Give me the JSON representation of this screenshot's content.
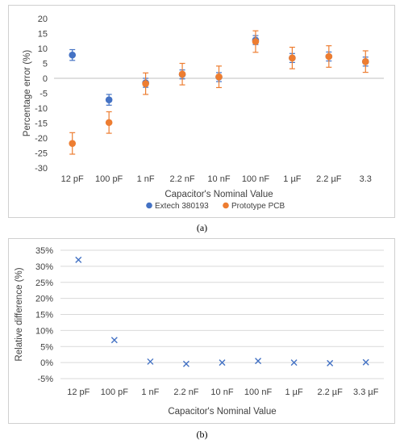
{
  "chart_data": [
    {
      "type": "scatter",
      "panel_label": "(a)",
      "xlabel": "Capacitor's Nominal Value",
      "ylabel": "Percentage error (%)",
      "categories": [
        "12 pF",
        "100 pF",
        "1 nF",
        "2.2 nF",
        "10 nF",
        "100 nF",
        "1 µF",
        "2.2 µF",
        "3.3"
      ],
      "ylim": [
        -30,
        20
      ],
      "yticks": [
        "20",
        "15",
        "10",
        "5",
        "0",
        "-5",
        "-10",
        "-15",
        "-20",
        "-25",
        "-30"
      ],
      "grid": false,
      "legend_position": "bottom",
      "series": [
        {
          "name": "Extech 380193",
          "color": "#4472c4",
          "values": [
            7.8,
            -7.2,
            -1.5,
            1.3,
            0.4,
            12.8,
            6.8,
            7.3,
            5.6
          ],
          "error": [
            1.8,
            1.8,
            1.5,
            1.5,
            1.5,
            1.5,
            1.5,
            1.5,
            1.5
          ]
        },
        {
          "name": "Prototype PCB",
          "color": "#ed7d31",
          "values": [
            -21.8,
            -14.8,
            -1.8,
            1.4,
            0.5,
            12.3,
            6.8,
            7.3,
            5.6
          ],
          "error": [
            3.6,
            3.6,
            3.6,
            3.6,
            3.6,
            3.6,
            3.6,
            3.6,
            3.6
          ]
        }
      ]
    },
    {
      "type": "scatter",
      "panel_label": "(b)",
      "xlabel": "Capacitor's Nominal Value",
      "ylabel": "Relative difference (%)",
      "categories": [
        "12 pF",
        "100 pF",
        "1 nF",
        "2.2 nF",
        "10 nF",
        "100 nF",
        "1 µF",
        "2.2 µF",
        "3.3 µF"
      ],
      "ylim": [
        -5,
        35
      ],
      "yticks": [
        "35%",
        "30%",
        "25%",
        "20%",
        "15%",
        "10%",
        "5%",
        "0%",
        "-5%"
      ],
      "grid": true,
      "marker": "x",
      "series": [
        {
          "color": "#4472c4",
          "values": [
            32.0,
            7.0,
            0.3,
            -0.4,
            0.0,
            0.5,
            0.0,
            -0.2,
            0.1
          ]
        }
      ]
    }
  ]
}
